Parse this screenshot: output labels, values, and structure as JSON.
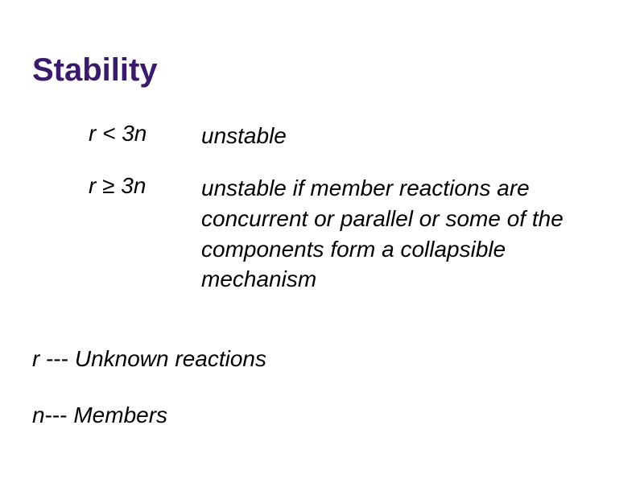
{
  "title": "Stability",
  "rows": [
    {
      "cond": "r < 3n",
      "desc": "unstable"
    },
    {
      "cond": "r ≥ 3n",
      "desc": "unstable if member reactions are concurrent or parallel or some of the components form a collapsible mechanism"
    }
  ],
  "defs": {
    "r": {
      "sym": "r",
      "sep": " --- ",
      "text": "Unknown reactions"
    },
    "n": {
      "sym": "n",
      "sep": "--- ",
      "text": "Members"
    }
  },
  "style": {
    "title_color": "#3a1a6a",
    "text_color": "#000000",
    "background": "#ffffff",
    "title_fontsize": 40,
    "body_fontsize": 28
  }
}
